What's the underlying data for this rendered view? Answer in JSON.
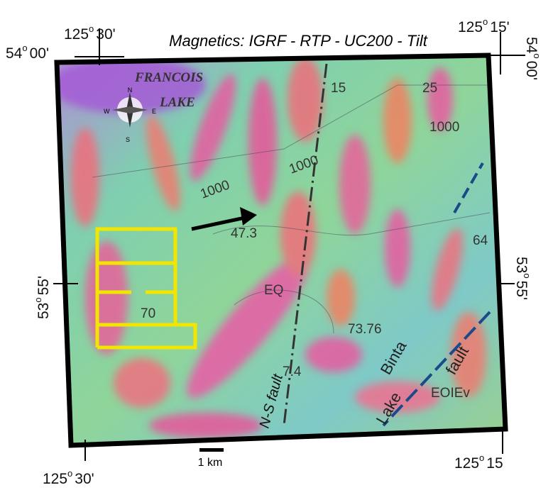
{
  "title": "Magnetics: IGRF - RTP - UC200 - Tilt",
  "coordinates": {
    "top_west": {
      "degrees": "125",
      "symbol": "o",
      "minutes": "30'"
    },
    "top_east": {
      "degrees": "125",
      "symbol": "o",
      "minutes": "15'"
    },
    "bottom_west": {
      "degrees": "125",
      "symbol": "o",
      "minutes": "30'"
    },
    "bottom_east": {
      "degrees": "125",
      "symbol": "o",
      "minutes": "15"
    },
    "north_left": {
      "degrees": "54",
      "symbol": "o",
      "minutes": "00'"
    },
    "north_right": {
      "degrees": "54",
      "symbol": "o",
      "minutes": "00'"
    },
    "mid_left": {
      "degrees": "53",
      "symbol": "o",
      "minutes": "55'"
    },
    "mid_right": {
      "degrees": "53",
      "symbol": "o",
      "minutes": "55'"
    }
  },
  "map_labels": [
    "FRANCOIS",
    "LAKE",
    "15",
    "25",
    "1000",
    "1000",
    "1000",
    "47.3",
    "EQ",
    "64",
    "70",
    "73.76",
    "7.4",
    "N-S fault",
    "Binta",
    "Lake",
    "fault",
    "EOIEv"
  ],
  "compass": {
    "n": "N",
    "s": "S",
    "e": "E",
    "w": "W"
  },
  "scale": "1 km"
}
